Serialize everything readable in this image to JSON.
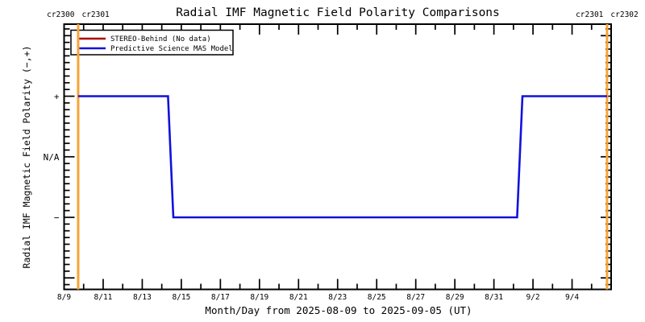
{
  "chart_data": {
    "type": "line",
    "title": "Radial IMF Magnetic Field Polarity Comparisons",
    "xlabel": "Month/Day from 2025-08-09 to 2025-09-05 (UT)",
    "ylabel": "Radial IMF Magnetic Field Polarity (−,+)",
    "x_start_date": "2025-08-09",
    "x_end_date": "2025-09-05",
    "x_span_days": 28,
    "x_tick_labels": [
      "8/9",
      "8/11",
      "8/13",
      "8/15",
      "8/17",
      "8/19",
      "8/21",
      "8/23",
      "8/25",
      "8/27",
      "8/29",
      "8/31",
      "9/2",
      "9/4"
    ],
    "x_major_every_days": 2,
    "x_minor_every_days": 1,
    "ylim": [
      -2.19,
      2.19
    ],
    "y_ticks": [
      {
        "value": 2,
        "label": ""
      },
      {
        "value": 1,
        "label": "+"
      },
      {
        "value": 0,
        "label": "N/A"
      },
      {
        "value": -1,
        "label": "−"
      },
      {
        "value": -2,
        "label": ""
      }
    ],
    "y_minor_per_unit": 9,
    "grid": false,
    "legend": {
      "position": "top-left",
      "entries": [
        {
          "label": "STEREO-Behind (No data)",
          "color": "#aa0000"
        },
        {
          "label": "Predictive Science MAS Model",
          "color": "#1212dd"
        }
      ]
    },
    "series": [
      {
        "name": "STEREO-Behind (No data)",
        "color": "#aa0000",
        "points_day_polarity": []
      },
      {
        "name": "Predictive Science MAS Model",
        "color": "#1212dd",
        "points_day_polarity": [
          [
            0.72,
            1
          ],
          [
            5.32,
            1
          ],
          [
            5.59,
            -1
          ],
          [
            23.19,
            -1
          ],
          [
            23.46,
            1
          ],
          [
            27.79,
            1
          ]
        ]
      }
    ],
    "carrington_boundaries": [
      {
        "day": 0.72,
        "label_before": "cr2300",
        "label_after": "cr2301"
      },
      {
        "day": 27.79,
        "label_before": "cr2301",
        "label_after": "cr2302"
      }
    ],
    "boundary_color": "#f7a43a"
  }
}
